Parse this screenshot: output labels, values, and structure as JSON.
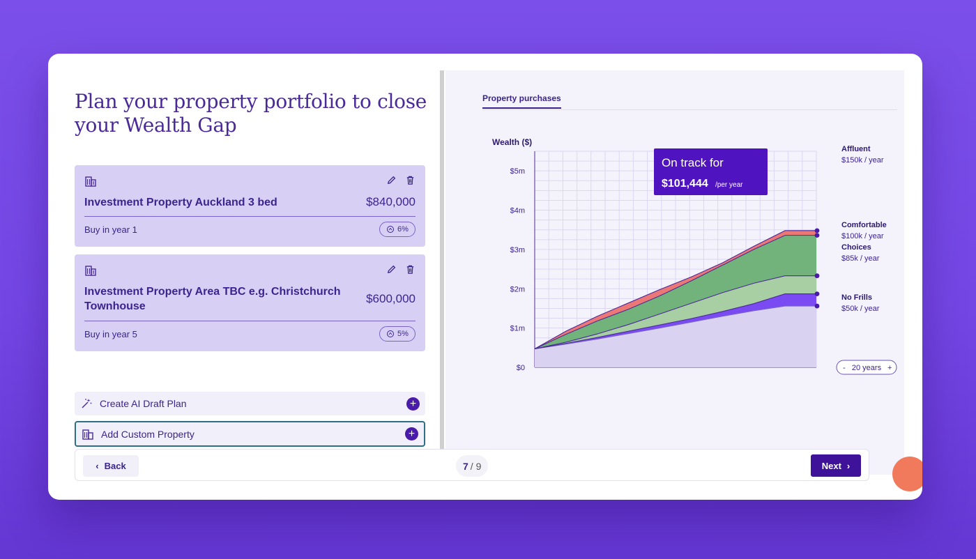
{
  "page": {
    "title": "Plan your property portfolio to close your Wealth Gap"
  },
  "properties": [
    {
      "name": "Investment Property Auckland 3 bed",
      "price": "$840,000",
      "buy": "Buy in year 1",
      "rate": "6%"
    },
    {
      "name": "Investment Property Area TBC e.g. Christchurch Townhouse",
      "price": "$600,000",
      "buy": "Buy in year 5",
      "rate": "5%"
    }
  ],
  "actions": {
    "ai_draft": "Create AI Draft Plan",
    "custom": "Add Custom Property"
  },
  "tab": {
    "label": "Property purchases"
  },
  "chart": {
    "ylabel": "Wealth ($)",
    "track_title": "On track for",
    "track_value": "$101,444",
    "track_unit": "/per year",
    "years_control": "20 years",
    "years_minus": "-",
    "years_plus": "+"
  },
  "chart_data": {
    "type": "area",
    "ylabel": "Wealth ($)",
    "ylim": [
      0,
      5500000
    ],
    "ticks": [
      "$0",
      "$1m",
      "$2m",
      "$3m",
      "$4m",
      "$5m"
    ],
    "tick_values": [
      0,
      1000000,
      2000000,
      3000000,
      4000000,
      5000000
    ],
    "years": 20,
    "series": [
      {
        "values": [
          470000,
          590000,
          720000,
          860000,
          1000000,
          1150000,
          1300000,
          1440000,
          1560000,
          1560000
        ],
        "color": "#d9d3f1",
        "edge": "#7a62c9"
      },
      {
        "values": [
          470000,
          610000,
          760000,
          920000,
          1080000,
          1240000,
          1420000,
          1620000,
          1870000,
          1870000
        ],
        "color": "#7a4af2",
        "edge": "#4a2a97"
      },
      {
        "values": [
          470000,
          640000,
          850000,
          1090000,
          1360000,
          1630000,
          1900000,
          2140000,
          2330000,
          2330000
        ],
        "color": "#a8cea3",
        "edge": "#4a2a97"
      },
      {
        "values": [
          470000,
          840000,
          1180000,
          1480000,
          1820000,
          2200000,
          2600000,
          3000000,
          3360000,
          3360000
        ],
        "color": "#72b37c",
        "edge": "#4a2a97"
      },
      {
        "values": [
          470000,
          920000,
          1300000,
          1640000,
          1980000,
          2300000,
          2660000,
          3080000,
          3480000,
          3480000
        ],
        "color": "#ec7777",
        "edge": "#4a2a97"
      }
    ],
    "levels": [
      {
        "name": "Affluent",
        "amount": "$150k / year"
      },
      {
        "name": "Comfortable",
        "amount": "$100k / year"
      },
      {
        "name": "Choices",
        "amount": "$85k / year"
      },
      {
        "name": "No Frills",
        "amount": "$50k / year"
      }
    ]
  },
  "footer": {
    "back": "Back",
    "current": "7",
    "total": "9",
    "next": "Next"
  },
  "colors": {
    "background": "#7a4ee8",
    "accent": "#3e139a",
    "card_fill": "#d8d0f4",
    "fab": "#f27a5c"
  }
}
